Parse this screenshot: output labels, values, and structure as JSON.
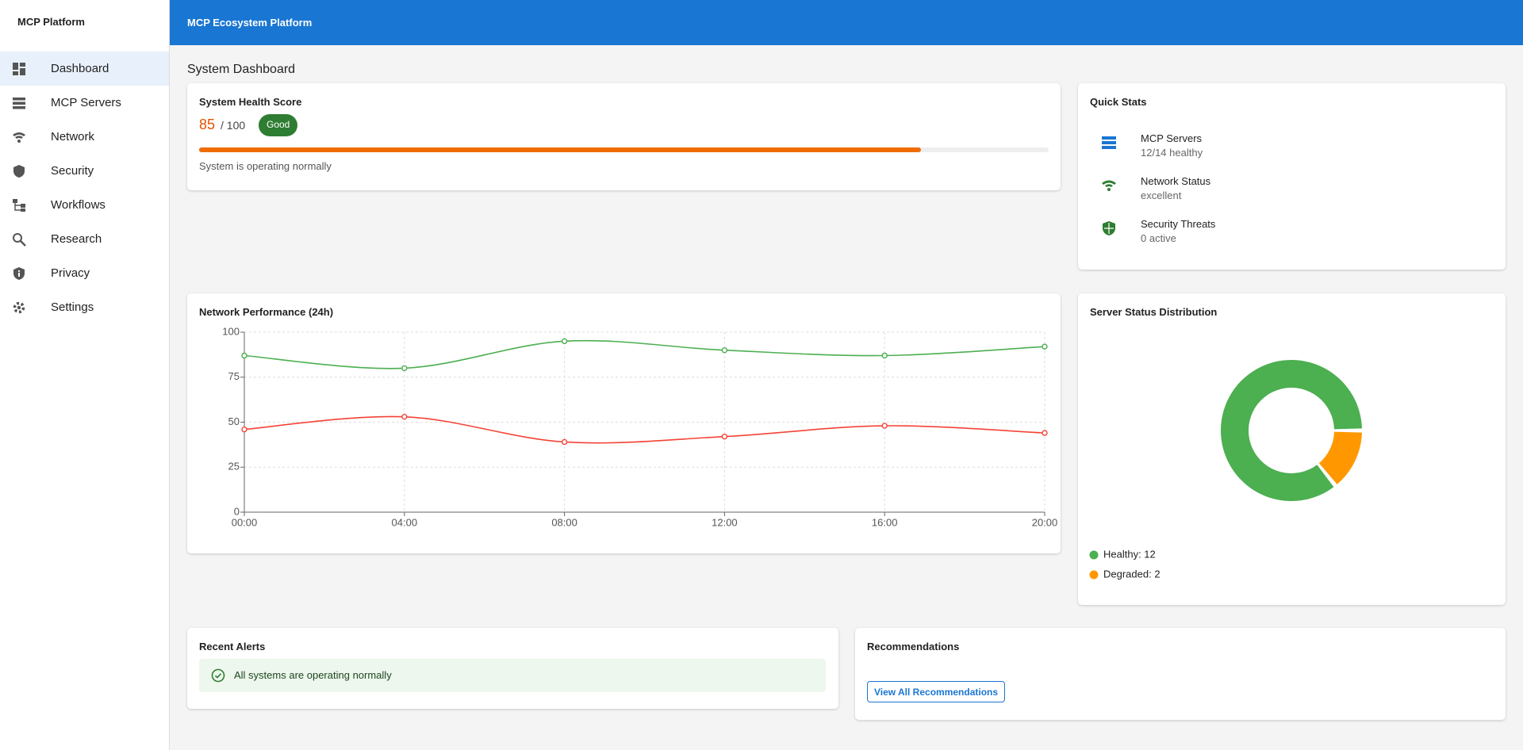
{
  "sidebar": {
    "title": "MCP Platform",
    "items": [
      "Dashboard",
      "MCP Servers",
      "Network",
      "Security",
      "Workflows",
      "Research",
      "Privacy",
      "Settings"
    ]
  },
  "header": {
    "title": "MCP Ecosystem Platform"
  },
  "page_title": "System Dashboard",
  "health": {
    "title": "System Health Score",
    "score": 85,
    "max": {
      "value": 100,
      "label": "/ 100"
    },
    "badge": "Good",
    "status": "System is operating normally"
  },
  "quick_stats": {
    "title": "Quick Stats",
    "items": [
      {
        "label": "MCP Servers",
        "value": "12/14 healthy"
      },
      {
        "label": "Network Status",
        "value": "excellent"
      },
      {
        "label": "Security Threats",
        "value": "0 active"
      }
    ]
  },
  "chart_data": [
    {
      "type": "line",
      "title": "Network Performance (24h)",
      "categories": [
        "00:00",
        "04:00",
        "08:00",
        "12:00",
        "16:00",
        "20:00"
      ],
      "series": [
        {
          "color": "#4caf50",
          "values": [
            87,
            80,
            95,
            90,
            87,
            92
          ]
        },
        {
          "color": "#f44336",
          "values": [
            46,
            53,
            39,
            42,
            48,
            44
          ]
        }
      ],
      "ylim": [
        0,
        100
      ],
      "yticks": [
        0,
        25,
        50,
        75,
        100
      ],
      "grid": true
    },
    {
      "type": "pie",
      "title": "Server Status Distribution",
      "labels": [
        "Healthy: 12",
        "Degraded: 2"
      ],
      "values": [
        12,
        2
      ],
      "colors": [
        "#4caf50",
        "#ff9800"
      ],
      "donut": true
    }
  ],
  "alerts": {
    "title": "Recent Alerts",
    "message": "All systems are operating normally"
  },
  "recommendations": {
    "title": "Recommendations",
    "button": "View All Recommendations"
  }
}
